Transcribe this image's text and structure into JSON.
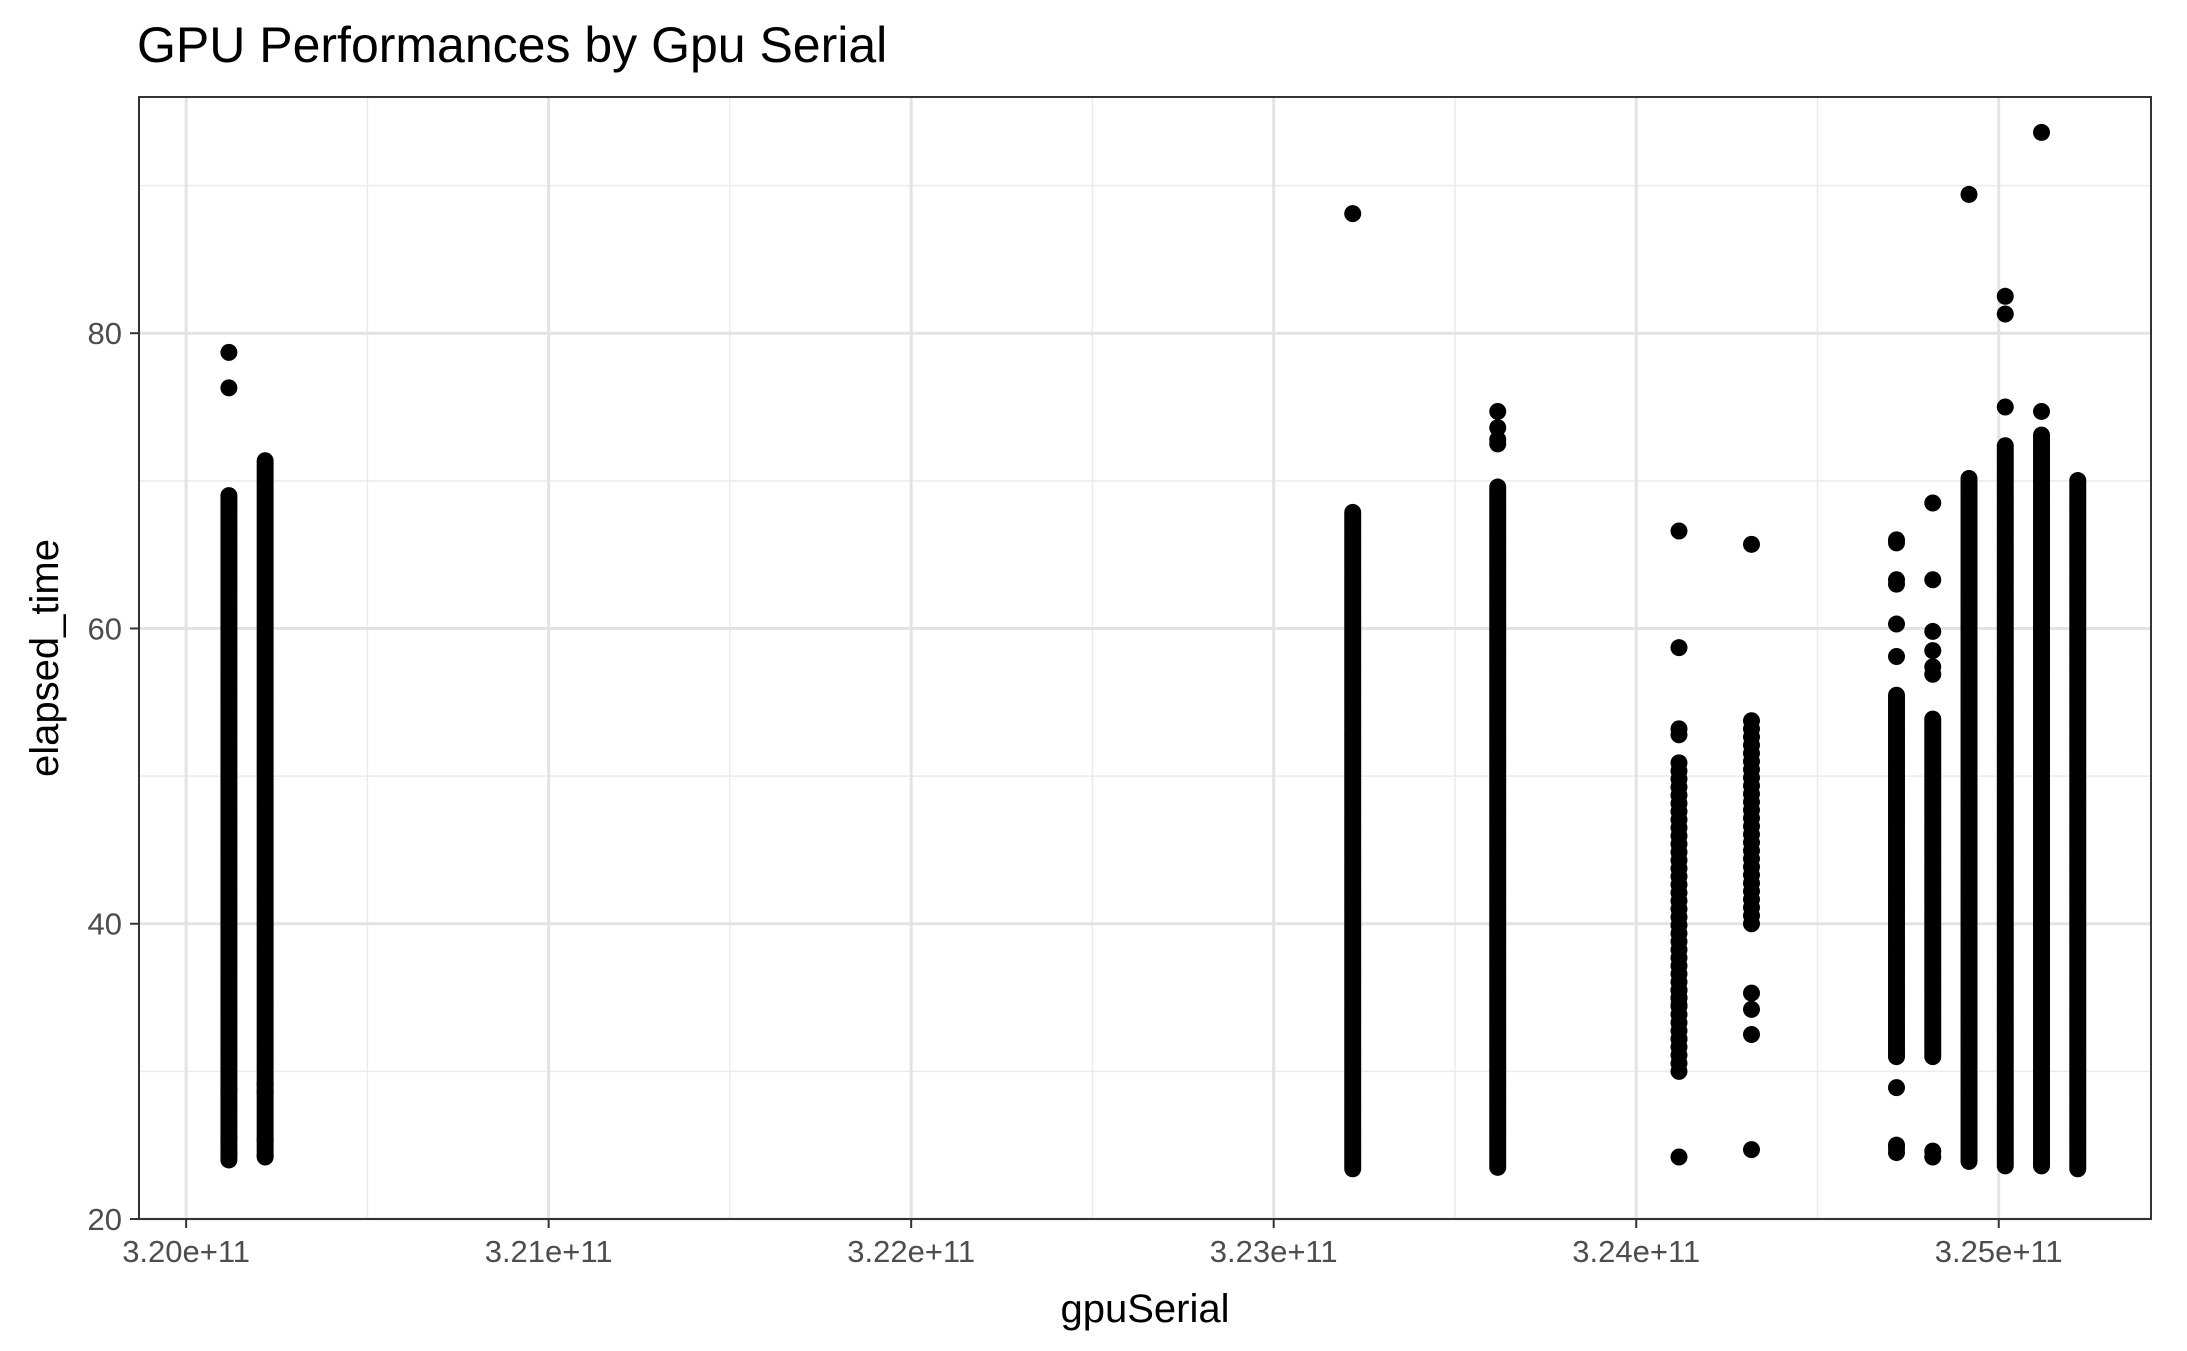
{
  "chart_data": {
    "type": "scatter",
    "title": "GPU Performances by Gpu Serial",
    "xlabel": "gpuSerial",
    "ylabel": "elapsed_time",
    "xlim": [
      319870000000,
      325420000000
    ],
    "ylim": [
      20,
      96
    ],
    "x_ticks": [
      320000000000,
      321000000000,
      322000000000,
      323000000000,
      324000000000,
      325000000000
    ],
    "x_tick_labels": [
      "3.20e+11",
      "3.21e+11",
      "3.22e+11",
      "3.23e+11",
      "3.24e+11",
      "3.25e+11"
    ],
    "y_ticks": [
      20,
      40,
      60,
      80
    ],
    "y_tick_labels": [
      "20",
      "40",
      "60",
      "80"
    ],
    "grid": true,
    "legend": "none",
    "point_color": "#000000",
    "clusters": [
      {
        "x": 320118000000,
        "min": 24.0,
        "max": 69.0,
        "outliers": [
          76.3,
          78.7,
          28.7,
          25.5,
          24.5
        ]
      },
      {
        "x": 320218000000,
        "min": 24.2,
        "max": 71.4,
        "outliers": [
          29.2,
          28.6,
          25.4,
          24.3
        ]
      },
      {
        "x": 323218000000,
        "min": 23.4,
        "max": 68.0,
        "outliers": [
          88.1
        ]
      },
      {
        "x": 323618000000,
        "min": 23.5,
        "max": 69.6,
        "outliers": [
          74.7,
          73.6,
          72.8,
          72.5
        ]
      },
      {
        "x": 324118000000,
        "min": 30.0,
        "max": 51.0,
        "sparse": true,
        "outliers": [
          66.6,
          58.7,
          53.2,
          52.8,
          35.5,
          35.0,
          34.5,
          32.2,
          24.2
        ]
      },
      {
        "x": 324318000000,
        "min": 40.0,
        "max": 54.1,
        "sparse": true,
        "outliers": [
          65.7,
          35.3,
          34.2,
          32.5,
          24.7
        ]
      },
      {
        "x": 324718000000,
        "min": 31.0,
        "max": 55.5,
        "outliers": [
          66.0,
          65.8,
          63.3,
          63.0,
          60.3,
          58.1,
          28.9,
          25.0,
          24.8,
          24.5
        ]
      },
      {
        "x": 324818000000,
        "min": 31.0,
        "max": 54.0,
        "outliers": [
          68.5,
          63.3,
          59.8,
          58.5,
          57.4,
          56.9,
          24.6,
          24.2
        ]
      },
      {
        "x": 324918000000,
        "min": 23.9,
        "max": 70.3,
        "outliers": [
          89.4
        ]
      },
      {
        "x": 325018000000,
        "min": 23.6,
        "max": 72.5,
        "outliers": [
          82.5,
          81.3,
          75.0
        ]
      },
      {
        "x": 325118000000,
        "min": 23.6,
        "max": 73.2,
        "outliers": [
          93.6,
          74.7
        ]
      },
      {
        "x": 325218000000,
        "min": 23.4,
        "max": 70.1,
        "outliers": []
      }
    ]
  }
}
